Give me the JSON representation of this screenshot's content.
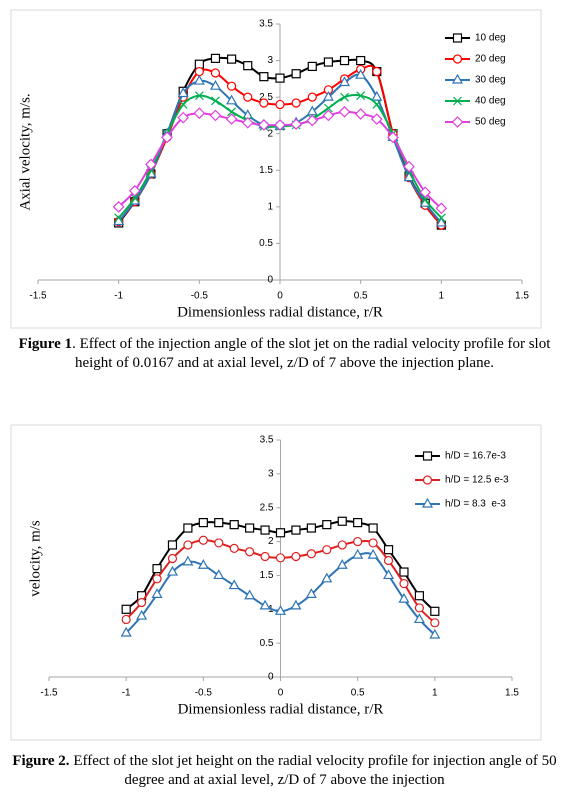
{
  "chart_data": [
    {
      "type": "line",
      "ylabel": "Axial velocity, m/s.",
      "xlabel": "Dimensionless radial distance, r/R",
      "x": [
        -1,
        -0.9,
        -0.8,
        -0.7,
        -0.6,
        -0.5,
        -0.4,
        -0.3,
        -0.2,
        -0.1,
        0,
        0.1,
        0.2,
        0.3,
        0.4,
        0.5,
        0.6,
        0.7,
        0.8,
        0.9,
        1
      ],
      "xlim": [
        -1.5,
        1.5
      ],
      "xticks": [
        -1.5,
        -1,
        -0.5,
        0,
        0.5,
        1,
        1.5
      ],
      "ylim": [
        0,
        3.5
      ],
      "yticks": [
        0,
        0.5,
        1,
        1.5,
        2,
        2.5,
        3,
        3.5
      ],
      "grid": false,
      "legend": "upper right",
      "series": [
        {
          "name": "10 deg",
          "color": "#000000",
          "marker": "square",
          "values": [
            0.78,
            1.07,
            1.45,
            2.0,
            2.58,
            2.95,
            3.03,
            3.02,
            2.93,
            2.78,
            2.76,
            2.82,
            2.92,
            2.98,
            3.0,
            3.0,
            2.85,
            2.0,
            1.42,
            1.05,
            0.75
          ]
        },
        {
          "name": "20 deg",
          "color": "#ff0000",
          "marker": "circle",
          "values": [
            0.8,
            1.07,
            1.45,
            1.95,
            2.5,
            2.85,
            2.83,
            2.65,
            2.5,
            2.42,
            2.4,
            2.42,
            2.5,
            2.6,
            2.75,
            2.88,
            2.85,
            2.0,
            1.4,
            1.02,
            0.75
          ]
        },
        {
          "name": "30 deg",
          "color": "#2e75b6",
          "marker": "triangle",
          "values": [
            0.8,
            1.08,
            1.45,
            2.0,
            2.55,
            2.72,
            2.65,
            2.45,
            2.25,
            2.12,
            2.1,
            2.15,
            2.3,
            2.5,
            2.7,
            2.8,
            2.5,
            1.95,
            1.4,
            1.05,
            0.78
          ]
        },
        {
          "name": "40 deg",
          "color": "#00b050",
          "marker": "x",
          "values": [
            0.85,
            1.12,
            1.5,
            2.0,
            2.4,
            2.52,
            2.45,
            2.3,
            2.18,
            2.1,
            2.1,
            2.12,
            2.2,
            2.35,
            2.5,
            2.52,
            2.4,
            2.0,
            1.5,
            1.1,
            0.85
          ]
        },
        {
          "name": "50 deg",
          "color": "#e040e0",
          "marker": "diamond",
          "values": [
            1.0,
            1.22,
            1.58,
            1.95,
            2.22,
            2.28,
            2.25,
            2.2,
            2.15,
            2.12,
            2.12,
            2.13,
            2.18,
            2.25,
            2.3,
            2.27,
            2.2,
            1.95,
            1.55,
            1.2,
            0.98
          ]
        }
      ]
    },
    {
      "type": "line",
      "ylabel": "velocity, m/s",
      "xlabel": "Dimensionless radial distance, r/R",
      "x": [
        -1,
        -0.9,
        -0.8,
        -0.7,
        -0.6,
        -0.5,
        -0.4,
        -0.3,
        -0.2,
        -0.1,
        0,
        0.1,
        0.2,
        0.3,
        0.4,
        0.5,
        0.6,
        0.7,
        0.8,
        0.9,
        1
      ],
      "xlim": [
        -1.5,
        1.5
      ],
      "xticks": [
        -1.5,
        -1,
        -0.5,
        0,
        0.5,
        1,
        1.5
      ],
      "ylim": [
        0,
        3.5
      ],
      "yticks": [
        0,
        0.5,
        1,
        1.5,
        2,
        2.5,
        3,
        3.5
      ],
      "grid": false,
      "legend": "upper right",
      "series": [
        {
          "name": "h/D = 16.7e-3",
          "color": "#000000",
          "marker": "square",
          "values": [
            1.0,
            1.2,
            1.6,
            1.95,
            2.2,
            2.28,
            2.28,
            2.25,
            2.2,
            2.17,
            2.13,
            2.17,
            2.2,
            2.25,
            2.3,
            2.28,
            2.2,
            1.88,
            1.55,
            1.2,
            0.97
          ]
        },
        {
          "name": "h/D = 12.5 e-3",
          "color": "#e02020",
          "marker": "circle",
          "values": [
            0.85,
            1.1,
            1.45,
            1.75,
            1.95,
            2.02,
            1.98,
            1.9,
            1.85,
            1.78,
            1.76,
            1.78,
            1.82,
            1.88,
            1.95,
            2.0,
            1.98,
            1.72,
            1.38,
            1.02,
            0.8
          ]
        },
        {
          "name": "h/D = 8.3  e-3",
          "color": "#2e75b6",
          "marker": "triangle",
          "values": [
            0.65,
            0.9,
            1.22,
            1.55,
            1.7,
            1.65,
            1.5,
            1.35,
            1.2,
            1.05,
            0.97,
            1.05,
            1.22,
            1.45,
            1.65,
            1.8,
            1.8,
            1.5,
            1.15,
            0.85,
            0.62
          ]
        }
      ]
    }
  ],
  "captions": [
    {
      "label": "Figure 1",
      "text": ". Effect of the injection angle of the slot jet on the radial velocity profile for slot height of 0.0167 and at axial level, z/D of 7 above the injection plane."
    },
    {
      "label": "Figure 2.",
      "text": " Effect of the slot jet height on the radial velocity profile for injection angle of 50 degree and at axial level, z/D of 7 above the injection"
    }
  ]
}
